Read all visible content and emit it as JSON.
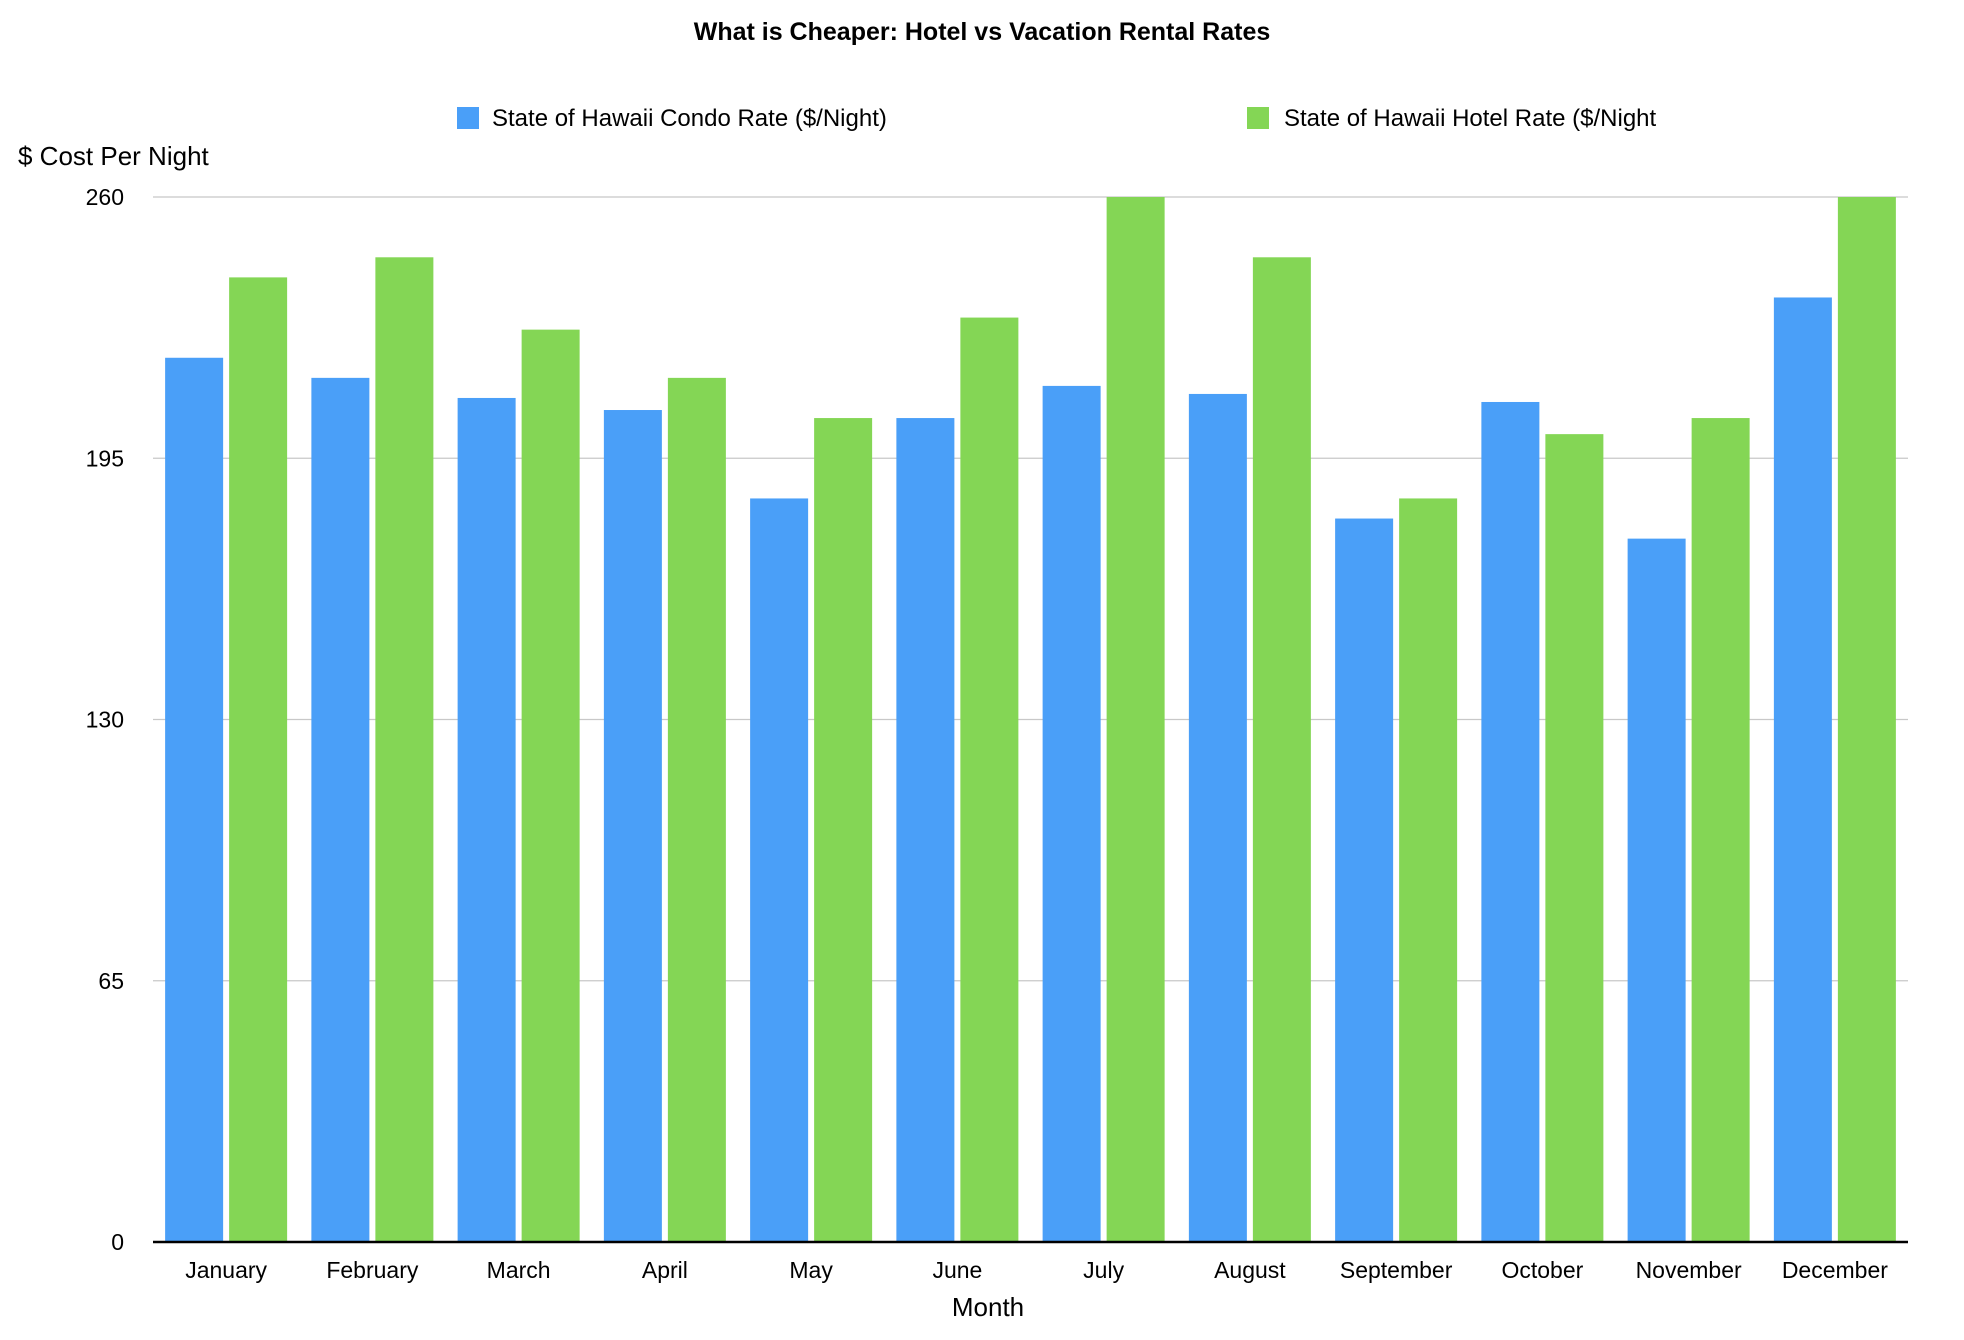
{
  "colors": {
    "condo": "#4A9FF8",
    "hotel": "#84D655",
    "grid": "#c8c8c8",
    "axis": "#000000"
  },
  "chart_data": {
    "type": "bar",
    "title": "What is Cheaper: Hotel vs Vacation Rental Rates",
    "xlabel": "Month",
    "ylabel": "$ Cost Per Night",
    "ylim": [
      0,
      260
    ],
    "yticks": [
      "0",
      "65",
      "130",
      "195",
      "260"
    ],
    "grid": true,
    "legend_position": "top",
    "categories": [
      "January",
      "February",
      "March",
      "April",
      "May",
      "June",
      "July",
      "August",
      "September",
      "October",
      "November",
      "December"
    ],
    "series": [
      {
        "name": "State of Hawaii Condo Rate ($/Night)",
        "color_key": "condo",
        "values": [
          220,
          215,
          210,
          207,
          185,
          205,
          213,
          211,
          180,
          209,
          175,
          235
        ]
      },
      {
        "name": "State of Hawaii Hotel Rate ($/Night",
        "color_key": "hotel",
        "values": [
          240,
          245,
          227,
          215,
          205,
          230,
          260,
          245,
          185,
          201,
          205,
          260
        ]
      }
    ]
  }
}
